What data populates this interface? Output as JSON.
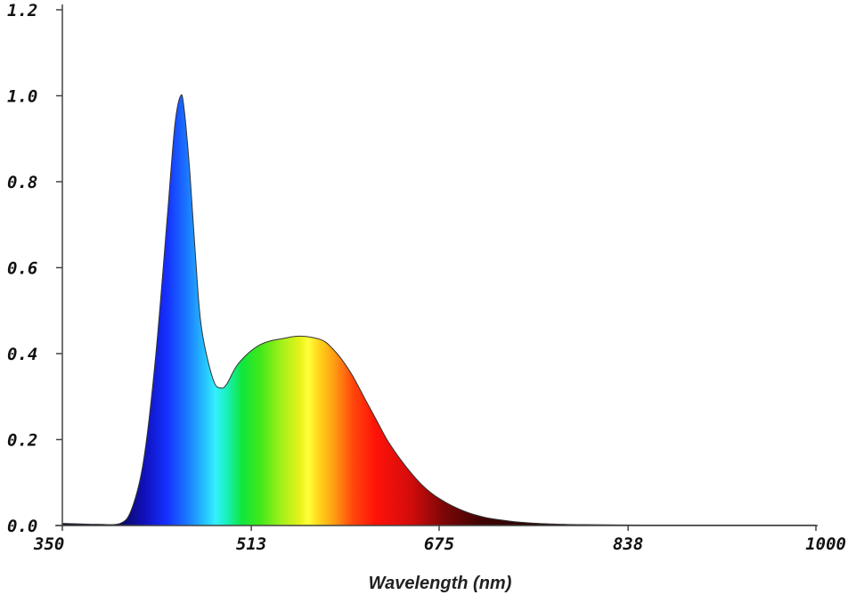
{
  "chart_data": {
    "type": "area",
    "title": "",
    "xlabel": "Wavelength (nm)",
    "ylabel": "",
    "xlim": [
      350,
      1000
    ],
    "ylim": [
      0,
      1.2
    ],
    "x_ticks": [
      "350",
      "513",
      "675",
      "838",
      "1000"
    ],
    "y_ticks": [
      "0.0",
      "0.2",
      "0.4",
      "0.6",
      "0.8",
      "1.0",
      "1.2"
    ],
    "grid": false,
    "fill": "visible-spectrum gradient",
    "series": [
      {
        "x": [
          350,
          380,
          400,
          410,
          420,
          430,
          440,
          447,
          452,
          455,
          460,
          465,
          470,
          480,
          487,
          492,
          500,
          510,
          520,
          530,
          540,
          550,
          560,
          570,
          575,
          580,
          590,
          600,
          610,
          620,
          630,
          640,
          650,
          660,
          670,
          680,
          690,
          700,
          710,
          720,
          740,
          760,
          780,
          800,
          850,
          900,
          950,
          1000
        ],
        "y": [
          0.005,
          0.003,
          0.005,
          0.04,
          0.15,
          0.38,
          0.7,
          0.93,
          1.0,
          0.97,
          0.82,
          0.62,
          0.46,
          0.34,
          0.32,
          0.33,
          0.37,
          0.4,
          0.42,
          0.43,
          0.435,
          0.44,
          0.44,
          0.435,
          0.43,
          0.42,
          0.39,
          0.35,
          0.3,
          0.25,
          0.2,
          0.16,
          0.125,
          0.095,
          0.072,
          0.055,
          0.041,
          0.03,
          0.022,
          0.016,
          0.009,
          0.005,
          0.003,
          0.002,
          0.001,
          0.001,
          0.001,
          0.001
        ]
      }
    ]
  }
}
